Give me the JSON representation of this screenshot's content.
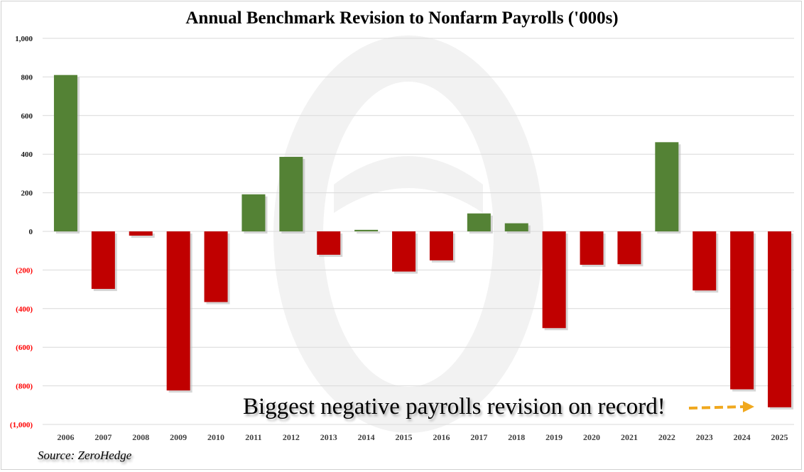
{
  "chart_data": {
    "type": "bar",
    "title": "Annual Benchmark Revision to Nonfarm Payrolls ('000s)",
    "categories": [
      "2006",
      "2007",
      "2008",
      "2009",
      "2010",
      "2011",
      "2012",
      "2013",
      "2014",
      "2015",
      "2016",
      "2017",
      "2018",
      "2019",
      "2020",
      "2021",
      "2022",
      "2023",
      "2024",
      "2025"
    ],
    "values": [
      810,
      -298,
      -22,
      -824,
      -366,
      192,
      386,
      -121,
      8,
      -208,
      -150,
      93,
      42,
      -501,
      -173,
      -170,
      462,
      -306,
      -818,
      -911
    ],
    "ylim": [
      -1000,
      1000
    ],
    "yticks": [
      1000,
      800,
      600,
      400,
      200,
      0,
      -200,
      -400,
      -600,
      -800,
      -1000
    ],
    "ytick_labels": [
      "1,000",
      "800",
      "600",
      "400",
      "200",
      "0",
      "(200)",
      "(400)",
      "(600)",
      "(800)",
      "(1,000)"
    ],
    "grid": true,
    "colors": {
      "positive": "#548235",
      "negative": "#c00000",
      "negative_tick": "#ff0000",
      "arrow": "#f0a81e"
    },
    "annotation": "Biggest negative payrolls revision on record!",
    "source": "Source: ZeroHedge"
  }
}
